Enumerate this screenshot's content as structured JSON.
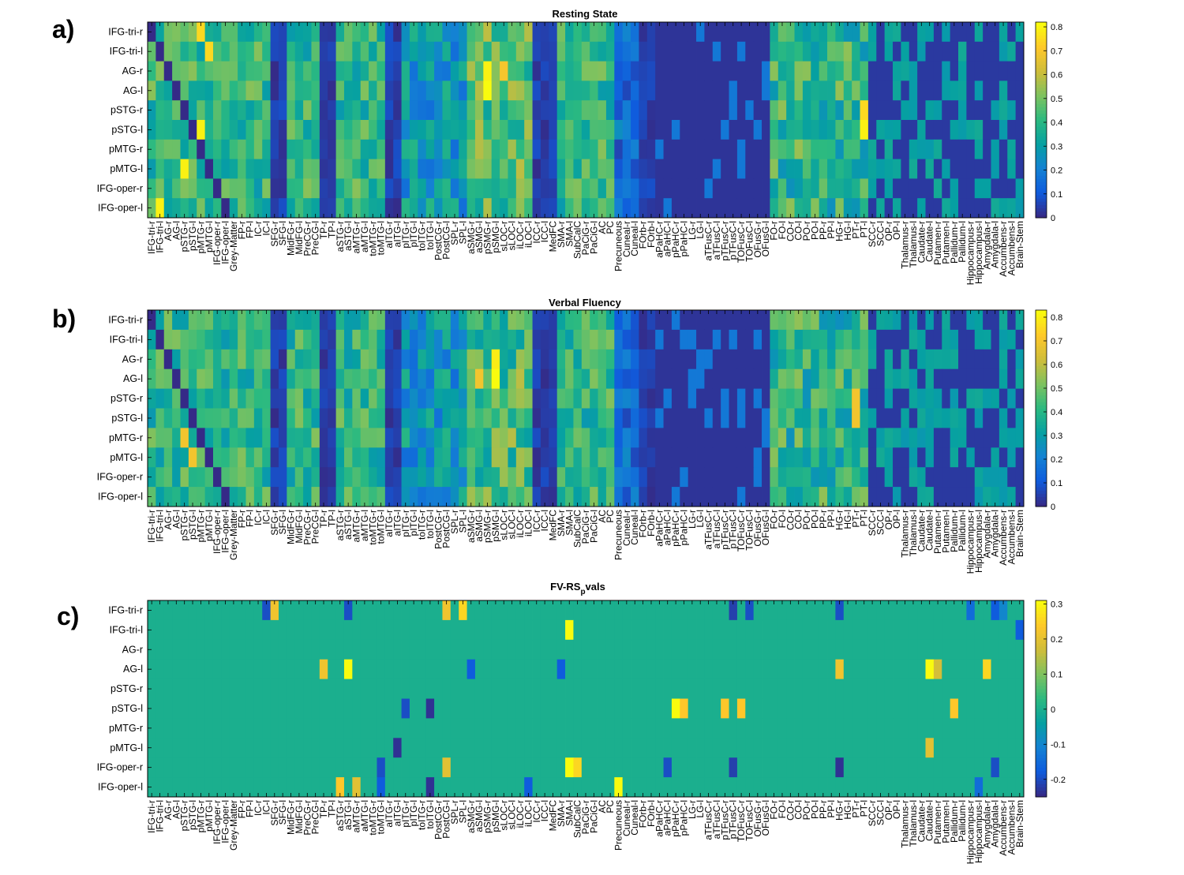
{
  "colormap": "parula",
  "regions": [
    "IFG-tri-r",
    "IFG-tri-l",
    "AG-r",
    "AG-l",
    "pSTG-r",
    "pSTG-l",
    "pMTG-r",
    "pMTG-l",
    "IFG-oper-r",
    "IFG-oper-l"
  ],
  "columns_ab": [
    "IFG-tri-r",
    "IFG-tri-l",
    "AG-r",
    "AG-l",
    "pSTG-r",
    "pSTG-l",
    "pMTG-r",
    "pMTG-l",
    "IFG-oper-r",
    "IFG-oper-l",
    "Grey-Matter",
    "FP-r",
    "FP-l",
    "IC-r",
    "IC-l",
    "SFG-r",
    "SFG-l",
    "MidFG-r",
    "MidFG-l",
    "PreCG-r",
    "PreCG-l",
    "TP-r",
    "TP-l",
    "aSTG-r",
    "aSTG-l",
    "aMTG-r",
    "aMTG-l",
    "toMTG-r",
    "toMTG-l",
    "aITG-r",
    "aITG-l",
    "pITG-r",
    "pITG-l",
    "toITG-r",
    "toITG-l",
    "PostCG-r",
    "PostCG-l",
    "SPL-r",
    "SPL-l",
    "aSMG-r",
    "aSMG-l",
    "pSMG-r",
    "pSMG-l",
    "sLOC-r",
    "sLOC-l",
    "iLOC-r",
    "iLOC-l",
    "ICC-r",
    "ICC-l",
    "MedFC",
    "SMA-r",
    "SMA-l",
    "SubCalC",
    "PaCiG-r",
    "PaCiG-l",
    "AC",
    "PC",
    "Precuneous",
    "Cuneal-r",
    "Cuneal-l",
    "FOrb-r",
    "FOrb-l",
    "aPaHC-r",
    "aPaHC-l",
    "pPaHC-r",
    "pPaHC-l",
    "LG-r",
    "LG-l",
    "aTFusC-r",
    "aTFusC-l",
    "pTFusC-r",
    "pTFusC-l",
    "TOFusC-r",
    "TOFusC-l",
    "OFusG-r",
    "OFusG-l",
    "FO-r",
    "FO-l",
    "CO-r",
    "CO-l",
    "PO-r",
    "PO-l",
    "PP-r",
    "PP-l",
    "HG-r",
    "HG-l",
    "PT-r",
    "PT-l",
    "SCC-r",
    "SCC-l",
    "OP-r",
    "OP-l",
    "Thalamus-r",
    "Thalamus-l",
    "Caudate-r",
    "Caudate-l",
    "Putamen-r",
    "Putamen-l",
    "Pallidum-r",
    "Pallidum-l",
    "Hippocampus-r",
    "Hippocampus-l",
    "Amygdala-r",
    "Amygdala-l",
    "Accumbens-r",
    "Accumbens-l",
    "Brain-Stem"
  ],
  "panels": [
    {
      "letter": "a)",
      "title": "Resting State",
      "title_sub": "",
      "colorbar_ticks": [
        "0.8",
        "0.7",
        "0.6",
        "0.5",
        "0.4",
        "0.3",
        "0.2",
        "0.1",
        "0"
      ],
      "clim": [
        0,
        0.82
      ]
    },
    {
      "letter": "b)",
      "title": "Verbal Fluency",
      "title_sub": "",
      "colorbar_ticks": [
        "0.8",
        "0.7",
        "0.6",
        "0.5",
        "0.4",
        "0.3",
        "0.2",
        "0.1",
        "0"
      ],
      "clim": [
        0,
        0.83
      ]
    },
    {
      "letter": "c)",
      "title": "FV-RS",
      "title_sub": "p",
      "title_tail": "vals",
      "colorbar_ticks": [
        "0.3",
        "0.2",
        "0.1",
        "0",
        "-0.1",
        "-0.2"
      ],
      "clim": [
        -0.25,
        0.31
      ]
    }
  ],
  "chart_data": [
    {
      "type": "heatmap",
      "title": "Resting State",
      "rows": "regions",
      "columns": "columns_ab",
      "zlim": [
        0,
        0.82
      ],
      "zero_blocks": [
        {
          "rows": [
            0,
            9
          ],
          "cols": [
            21,
            22
          ],
          "note": "TP-r, TP-l ~0"
        },
        {
          "rows": [
            0,
            9
          ],
          "cols": [
            47,
            48
          ],
          "note": "ICC ~0"
        },
        {
          "rows": [
            0,
            9
          ],
          "cols": [
            62,
            75
          ],
          "note": "aPaHC..OFusG ~0 except small patches"
        },
        {
          "rows": [
            0,
            9
          ],
          "cols": [
            88,
            106
          ],
          "note": "SCC..Brain-Stem mostly low"
        }
      ],
      "bright_cells": [
        {
          "row": 2,
          "col": 41,
          "value": 0.8
        },
        {
          "row": 3,
          "col": 41,
          "value": 0.82
        },
        {
          "row": 2,
          "col": 43,
          "value": 0.7
        },
        {
          "row": 0,
          "col": 6,
          "value": 0.75
        },
        {
          "row": 1,
          "col": 7,
          "value": 0.75
        },
        {
          "row": 5,
          "col": 6,
          "value": 0.8
        },
        {
          "row": 7,
          "col": 4,
          "value": 0.8
        },
        {
          "row": 5,
          "col": 87,
          "value": 0.8
        },
        {
          "row": 4,
          "col": 87,
          "value": 0.75
        },
        {
          "row": 9,
          "col": 1,
          "value": 0.8
        }
      ]
    },
    {
      "type": "heatmap",
      "title": "Verbal Fluency",
      "rows": "regions",
      "columns": "columns_ab",
      "zlim": [
        0,
        0.83
      ],
      "bright_cells": [
        {
          "row": 2,
          "col": 42,
          "value": 0.8
        },
        {
          "row": 3,
          "col": 42,
          "value": 0.83
        },
        {
          "row": 3,
          "col": 40,
          "value": 0.7
        },
        {
          "row": 4,
          "col": 86,
          "value": 0.7
        },
        {
          "row": 5,
          "col": 86,
          "value": 0.7
        },
        {
          "row": 6,
          "col": 4,
          "value": 0.7
        },
        {
          "row": 7,
          "col": 5,
          "value": 0.7
        }
      ]
    },
    {
      "type": "heatmap",
      "title": "FV-RS p vals",
      "rows": "regions",
      "columns": "columns_ab",
      "zlim": [
        -0.25,
        0.31
      ],
      "background_value": 0,
      "cells": [
        {
          "row": 0,
          "col": 14,
          "value": -0.2
        },
        {
          "row": 0,
          "col": 15,
          "value": 0.22
        },
        {
          "row": 0,
          "col": 24,
          "value": -0.2
        },
        {
          "row": 0,
          "col": 36,
          "value": 0.22
        },
        {
          "row": 0,
          "col": 38,
          "value": 0.26
        },
        {
          "row": 0,
          "col": 71,
          "value": -0.22
        },
        {
          "row": 0,
          "col": 73,
          "value": -0.2
        },
        {
          "row": 0,
          "col": 84,
          "value": -0.2
        },
        {
          "row": 0,
          "col": 100,
          "value": -0.15
        },
        {
          "row": 0,
          "col": 103,
          "value": -0.18
        },
        {
          "row": 0,
          "col": 104,
          "value": -0.1
        },
        {
          "row": 1,
          "col": 51,
          "value": 0.31
        },
        {
          "row": 1,
          "col": 106,
          "value": -0.18
        },
        {
          "row": 3,
          "col": 21,
          "value": 0.22
        },
        {
          "row": 3,
          "col": 24,
          "value": 0.31
        },
        {
          "row": 3,
          "col": 39,
          "value": -0.18
        },
        {
          "row": 3,
          "col": 50,
          "value": -0.18
        },
        {
          "row": 3,
          "col": 84,
          "value": 0.22
        },
        {
          "row": 3,
          "col": 95,
          "value": 0.31
        },
        {
          "row": 3,
          "col": 96,
          "value": 0.18
        },
        {
          "row": 3,
          "col": 102,
          "value": 0.26
        },
        {
          "row": 5,
          "col": 31,
          "value": -0.2
        },
        {
          "row": 5,
          "col": 34,
          "value": -0.24
        },
        {
          "row": 5,
          "col": 64,
          "value": 0.31
        },
        {
          "row": 5,
          "col": 65,
          "value": 0.24
        },
        {
          "row": 5,
          "col": 70,
          "value": 0.24
        },
        {
          "row": 5,
          "col": 72,
          "value": 0.24
        },
        {
          "row": 5,
          "col": 98,
          "value": 0.24
        },
        {
          "row": 7,
          "col": 30,
          "value": -0.24
        },
        {
          "row": 7,
          "col": 95,
          "value": 0.2
        },
        {
          "row": 8,
          "col": 28,
          "value": -0.2
        },
        {
          "row": 8,
          "col": 36,
          "value": 0.2
        },
        {
          "row": 8,
          "col": 51,
          "value": 0.31
        },
        {
          "row": 8,
          "col": 52,
          "value": 0.26
        },
        {
          "row": 8,
          "col": 63,
          "value": -0.2
        },
        {
          "row": 8,
          "col": 71,
          "value": -0.22
        },
        {
          "row": 8,
          "col": 84,
          "value": -0.24
        },
        {
          "row": 8,
          "col": 103,
          "value": -0.2
        },
        {
          "row": 9,
          "col": 23,
          "value": 0.24
        },
        {
          "row": 9,
          "col": 25,
          "value": 0.2
        },
        {
          "row": 9,
          "col": 28,
          "value": -0.18
        },
        {
          "row": 9,
          "col": 34,
          "value": -0.24
        },
        {
          "row": 9,
          "col": 46,
          "value": -0.18
        },
        {
          "row": 9,
          "col": 57,
          "value": 0.31
        },
        {
          "row": 9,
          "col": 101,
          "value": -0.15
        }
      ]
    }
  ]
}
